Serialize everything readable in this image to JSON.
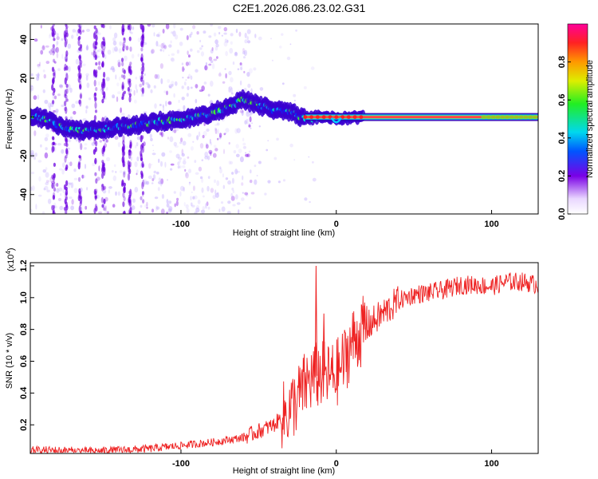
{
  "title": "C2E1.2026.086.23.02.G31",
  "colors": {
    "snr_line": "#ee2222",
    "track": "#ff2a5a"
  },
  "chart_data": [
    {
      "type": "heatmap",
      "name": "spectrogram",
      "xlabel": "Height of straight line (km)",
      "ylabel": "Frequency (Hz)",
      "xlim": [
        -197,
        130
      ],
      "ylim": [
        -50,
        48
      ],
      "xticks": [
        -100,
        0,
        100
      ],
      "xtick_labels": [
        "-100",
        "0",
        "100"
      ],
      "yticks": [
        -40,
        -20,
        0,
        20,
        40
      ],
      "ytick_labels": [
        "-40",
        "-20",
        "0",
        "20",
        "40"
      ],
      "colorbar": {
        "label": "Normalized spectral amplitude",
        "range": [
          0,
          1
        ],
        "ticks": [
          0.0,
          0.2,
          0.4,
          0.6,
          0.8
        ],
        "tick_labels": [
          "0.0",
          "0.2",
          "0.4",
          "0.6",
          "0.8"
        ]
      },
      "track": {
        "x": [
          -197,
          -185,
          -175,
          -160,
          -150,
          -140,
          -130,
          -120,
          -110,
          -100,
          -90,
          -80,
          -70,
          -60,
          -50,
          -40,
          -30,
          -20,
          -10,
          0,
          10,
          20,
          130
        ],
        "y": [
          1,
          -2,
          -6,
          -7,
          -6,
          -5,
          -4,
          -3,
          -2,
          -1,
          0,
          2,
          5,
          9,
          6,
          4,
          3,
          -1,
          0,
          -1,
          0,
          0,
          0
        ]
      }
    },
    {
      "type": "line",
      "name": "snr",
      "xlabel": "Height of straight line (km)",
      "ylabel": "SNR (10 * v/v)",
      "scale_label": "(x10",
      "scale_exp": "4",
      "scale_close": ")",
      "xlim": [
        -197,
        130
      ],
      "ylim": [
        0.02,
        1.22
      ],
      "xticks": [
        -100,
        0,
        100
      ],
      "xtick_labels": [
        "-100",
        "0",
        "100"
      ],
      "yticks": [
        0.2,
        0.4,
        0.6,
        0.8,
        1.0,
        1.2
      ],
      "ytick_labels": [
        "0.2",
        "0.4",
        "0.6",
        "0.8",
        "1.0",
        "1.2"
      ],
      "trend": {
        "x": [
          -197,
          -180,
          -160,
          -140,
          -120,
          -100,
          -80,
          -60,
          -50,
          -40,
          -30,
          -25,
          -20,
          -15,
          -10,
          -5,
          0,
          5,
          10,
          20,
          30,
          40,
          50,
          60,
          70,
          80,
          90,
          100,
          110,
          120,
          130
        ],
        "y": [
          0.04,
          0.04,
          0.035,
          0.04,
          0.05,
          0.07,
          0.09,
          0.12,
          0.16,
          0.2,
          0.3,
          0.36,
          0.45,
          0.5,
          0.52,
          0.5,
          0.52,
          0.6,
          0.72,
          0.82,
          0.9,
          0.98,
          1.02,
          1.03,
          1.05,
          1.08,
          1.08,
          1.07,
          1.1,
          1.1,
          1.08
        ]
      },
      "spikes": [
        {
          "x": -13,
          "y": 1.2
        },
        {
          "x": -8,
          "y": 0.9
        },
        {
          "x": 18,
          "y": 0.95
        }
      ]
    }
  ]
}
